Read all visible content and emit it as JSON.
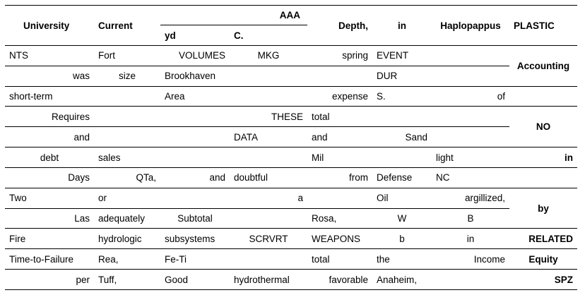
{
  "header": {
    "university": "University",
    "current": "Current",
    "aaa": "AAA",
    "yd": "yd",
    "c": "C.",
    "depth": "Depth,",
    "in": "in",
    "haplopappus": "Haplopappus",
    "plastic": "PLASTIC"
  },
  "rows": [
    [
      "NTS",
      "Fort",
      "VOLUMES",
      "MKG",
      "spring",
      "EVENT",
      ""
    ],
    [
      "was",
      "size",
      "Brookhaven",
      "",
      "",
      "DUR",
      ""
    ],
    [
      "short-term",
      "",
      "Area",
      "",
      "expense",
      "S.",
      "of"
    ],
    [
      "Requires",
      "",
      "",
      "THESE",
      "total",
      "",
      ""
    ],
    [
      "and",
      "",
      "",
      "DATA",
      "and",
      "Sand",
      ""
    ],
    [
      "debt",
      "sales",
      "",
      "",
      "Mil",
      "",
      "light"
    ],
    [
      "Days",
      "QTa,",
      "and",
      "doubtful",
      "from",
      "Defense",
      "NC"
    ],
    [
      "Two",
      "or",
      "",
      "a",
      "",
      "Oil",
      "argillized,"
    ],
    [
      "Las",
      "adequately",
      "Subtotal",
      "",
      "Rosa,",
      "W",
      "B"
    ],
    [
      "Fire",
      "hydrologic",
      "subsystems",
      "SCRVRT",
      "WEAPONS",
      "b",
      "in"
    ],
    [
      "Time-to-Failure",
      "Rea,",
      "Fe-Ti",
      "",
      "total",
      "the",
      "Income"
    ],
    [
      "per",
      "Tuff,",
      "Good",
      "hydrothermal",
      "favorable",
      "Anaheim,",
      ""
    ]
  ],
  "last_col": {
    "accounting": "Accounting",
    "no": "NO",
    "in": "in",
    "by": "by",
    "related": "RELATED",
    "equity": "Equity",
    "spz": "SPZ"
  }
}
